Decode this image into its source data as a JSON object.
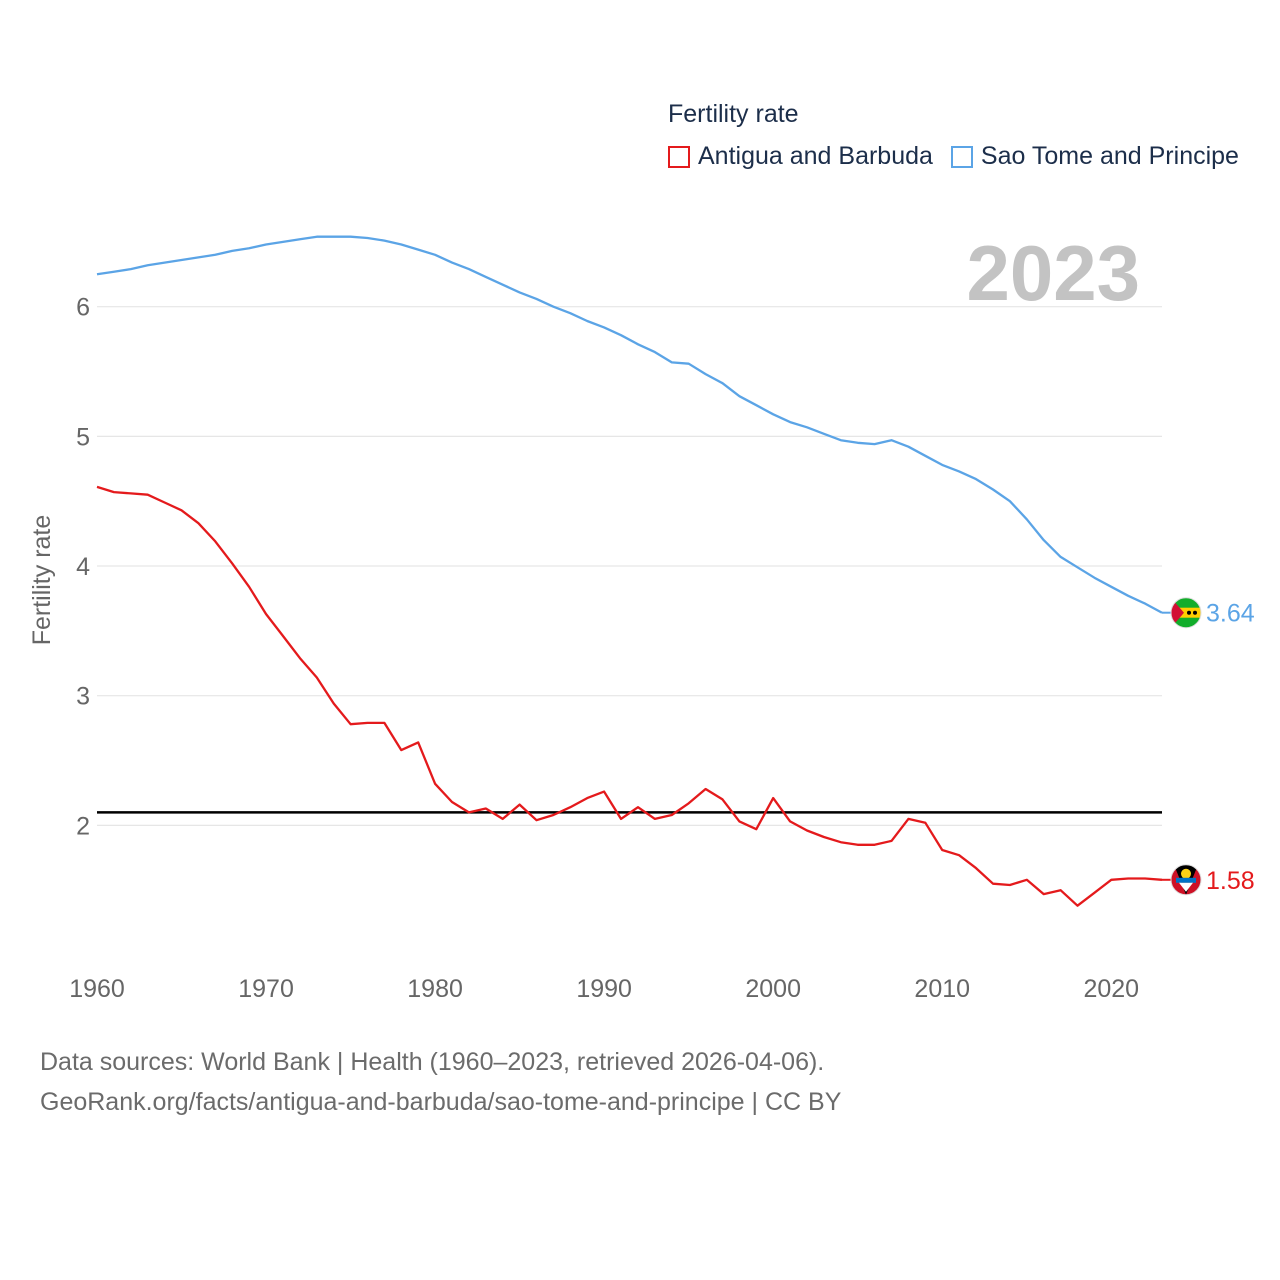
{
  "chart_data": {
    "type": "line",
    "legend_title": "Fertility rate",
    "ylabel": "Fertility rate",
    "year_label": "2023",
    "xlim": [
      1960,
      2023
    ],
    "ylim": [
      1.0,
      6.9
    ],
    "yticks": [
      2,
      3,
      4,
      5,
      6
    ],
    "xticks": [
      1960,
      1970,
      1980,
      1990,
      2000,
      2010,
      2020
    ],
    "reference_line": 2.1,
    "colors": {
      "antigua": "#e41a1c",
      "sao_tome": "#5ba4e6",
      "reference": "#000000",
      "grid": "#e6e6e6",
      "year": "#c3c3c3"
    },
    "series": [
      {
        "key": "antigua",
        "name": "Antigua and Barbuda",
        "end_label": "1.58",
        "x": [
          1960,
          1961,
          1962,
          1963,
          1964,
          1965,
          1966,
          1967,
          1968,
          1969,
          1970,
          1971,
          1972,
          1973,
          1974,
          1975,
          1976,
          1977,
          1978,
          1979,
          1980,
          1981,
          1982,
          1983,
          1984,
          1985,
          1986,
          1987,
          1988,
          1989,
          1990,
          1991,
          1992,
          1993,
          1994,
          1995,
          1996,
          1997,
          1998,
          1999,
          2000,
          2001,
          2002,
          2003,
          2004,
          2005,
          2006,
          2007,
          2008,
          2009,
          2010,
          2011,
          2012,
          2013,
          2014,
          2015,
          2016,
          2017,
          2018,
          2019,
          2020,
          2021,
          2022,
          2023
        ],
        "values": [
          4.61,
          4.57,
          4.56,
          4.55,
          4.49,
          4.43,
          4.33,
          4.19,
          4.02,
          3.84,
          3.63,
          3.46,
          3.29,
          3.14,
          2.94,
          2.78,
          2.79,
          2.79,
          2.58,
          2.64,
          2.32,
          2.18,
          2.1,
          2.13,
          2.05,
          2.16,
          2.04,
          2.08,
          2.14,
          2.21,
          2.26,
          2.05,
          2.14,
          2.05,
          2.08,
          2.17,
          2.28,
          2.2,
          2.03,
          1.97,
          2.21,
          2.03,
          1.96,
          1.91,
          1.87,
          1.85,
          1.85,
          1.88,
          2.05,
          2.02,
          1.81,
          1.77,
          1.67,
          1.55,
          1.54,
          1.58,
          1.47,
          1.5,
          1.38,
          1.48,
          1.58,
          1.59,
          1.59,
          1.58
        ]
      },
      {
        "key": "sao_tome",
        "name": "Sao Tome and Principe",
        "end_label": "3.64",
        "x": [
          1960,
          1961,
          1962,
          1963,
          1964,
          1965,
          1966,
          1967,
          1968,
          1969,
          1970,
          1971,
          1972,
          1973,
          1974,
          1975,
          1976,
          1977,
          1978,
          1979,
          1980,
          1981,
          1982,
          1983,
          1984,
          1985,
          1986,
          1987,
          1988,
          1989,
          1990,
          1991,
          1992,
          1993,
          1994,
          1995,
          1996,
          1997,
          1998,
          1999,
          2000,
          2001,
          2002,
          2003,
          2004,
          2005,
          2006,
          2007,
          2008,
          2009,
          2010,
          2011,
          2012,
          2013,
          2014,
          2015,
          2016,
          2017,
          2018,
          2019,
          2020,
          2021,
          2022,
          2023
        ],
        "values": [
          6.25,
          6.27,
          6.29,
          6.32,
          6.34,
          6.36,
          6.38,
          6.4,
          6.43,
          6.45,
          6.48,
          6.5,
          6.52,
          6.54,
          6.54,
          6.54,
          6.53,
          6.51,
          6.48,
          6.44,
          6.4,
          6.34,
          6.29,
          6.23,
          6.17,
          6.11,
          6.06,
          6.0,
          5.95,
          5.89,
          5.84,
          5.78,
          5.71,
          5.65,
          5.57,
          5.56,
          5.48,
          5.41,
          5.31,
          5.24,
          5.17,
          5.11,
          5.07,
          5.02,
          4.97,
          4.95,
          4.94,
          4.97,
          4.92,
          4.85,
          4.78,
          4.73,
          4.67,
          4.59,
          4.5,
          4.36,
          4.2,
          4.07,
          3.99,
          3.91,
          3.84,
          3.77,
          3.71,
          3.64
        ]
      }
    ]
  },
  "footer": {
    "sources": "Data sources: World Bank | Health (1960–2023, retrieved 2026-04-06).",
    "credit": "GeoRank.org/facts/antigua-and-barbuda/sao-tome-and-principe | CC BY"
  }
}
